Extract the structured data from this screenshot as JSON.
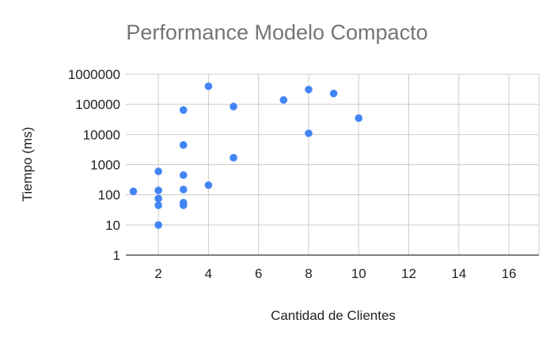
{
  "chart_data": {
    "type": "scatter",
    "title": "Performance Modelo Compacto",
    "xlabel": "Cantidad de Clientes",
    "ylabel": "Tiempo (ms)",
    "x_scale": "linear",
    "y_scale": "log",
    "xlim": [
      0.7,
      17.2
    ],
    "ylim": [
      1,
      1000000
    ],
    "x_ticks": [
      2,
      4,
      6,
      8,
      10,
      12,
      14,
      16
    ],
    "y_ticks": [
      1,
      10,
      100,
      1000,
      10000,
      100000,
      1000000
    ],
    "x_tick_labels": [
      "2",
      "4",
      "6",
      "8",
      "10",
      "12",
      "14",
      "16"
    ],
    "y_tick_labels": [
      "1",
      "10",
      "100",
      "1000",
      "10000",
      "100000",
      "1000000"
    ],
    "grid": true,
    "legend": "none",
    "point_color": "#4285f4",
    "series": [
      {
        "points": [
          {
            "x": 1,
            "y": 130
          },
          {
            "x": 2,
            "y": 600
          },
          {
            "x": 2,
            "y": 140
          },
          {
            "x": 2,
            "y": 75
          },
          {
            "x": 2,
            "y": 45
          },
          {
            "x": 2,
            "y": 10
          },
          {
            "x": 3,
            "y": 65000
          },
          {
            "x": 3,
            "y": 4500
          },
          {
            "x": 3,
            "y": 450
          },
          {
            "x": 3,
            "y": 150
          },
          {
            "x": 3,
            "y": 55
          },
          {
            "x": 3,
            "y": 45
          },
          {
            "x": 4,
            "y": 400000
          },
          {
            "x": 4,
            "y": 210
          },
          {
            "x": 5,
            "y": 85000
          },
          {
            "x": 5,
            "y": 1700
          },
          {
            "x": 7,
            "y": 140000
          },
          {
            "x": 8,
            "y": 310000
          },
          {
            "x": 8,
            "y": 11000
          },
          {
            "x": 9,
            "y": 230000
          },
          {
            "x": 10,
            "y": 35000
          }
        ]
      }
    ]
  }
}
